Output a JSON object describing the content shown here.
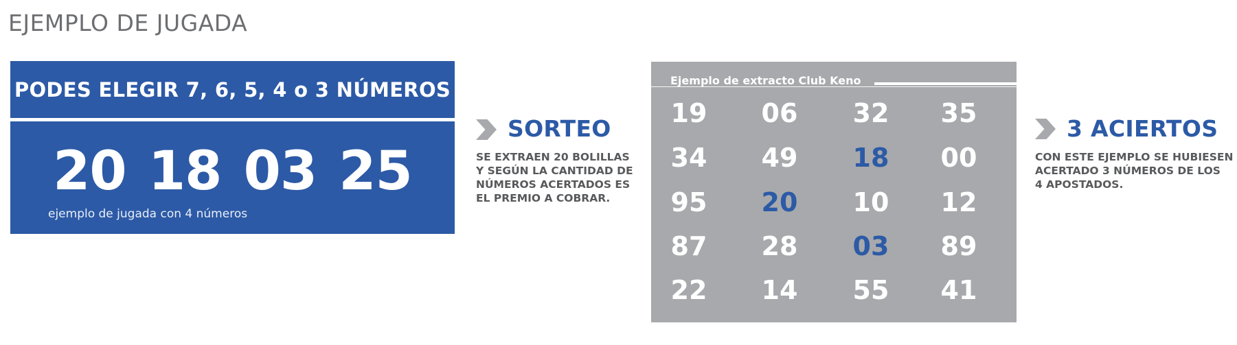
{
  "title": "EJEMPLO DE JUGADA",
  "play": {
    "heading": "PODES ELEGIR 7, 6, 5, 4 o 3 NÚMEROS",
    "numbers": [
      "20",
      "18",
      "03",
      "25"
    ],
    "caption": "ejemplo de jugada con 4 números"
  },
  "sorteo": {
    "heading": "SORTEO",
    "lines": [
      "SE EXTRAEN 20 BOLILLAS",
      "Y SEGÚN LA CANTIDAD DE",
      "NÚMEROS ACERTADOS ES",
      "EL PREMIO A COBRAR."
    ]
  },
  "extracto": {
    "title": "Ejemplo de extracto Club Keno",
    "rows": [
      [
        "19",
        "06",
        "32",
        "35"
      ],
      [
        "34",
        "49",
        "18",
        "00"
      ],
      [
        "95",
        "20",
        "10",
        "12"
      ],
      [
        "87",
        "28",
        "03",
        "89"
      ],
      [
        "22",
        "14",
        "55",
        "41"
      ]
    ],
    "hits": [
      "18",
      "20",
      "03"
    ]
  },
  "aciertos": {
    "heading": "3 ACIERTOS",
    "lines": [
      "CON ESTE EJEMPLO SE HUBIESEN",
      "ACERTADO 3 NÚMEROS DE LOS",
      "4 APOSTADOS."
    ]
  },
  "colors": {
    "blue": "#2c5aa6",
    "gray": "#a7a9ac",
    "text_gray": "#58595b"
  },
  "icons": {
    "sorteo_marker": "chevron-right-icon",
    "aciertos_marker": "chevron-right-icon"
  }
}
